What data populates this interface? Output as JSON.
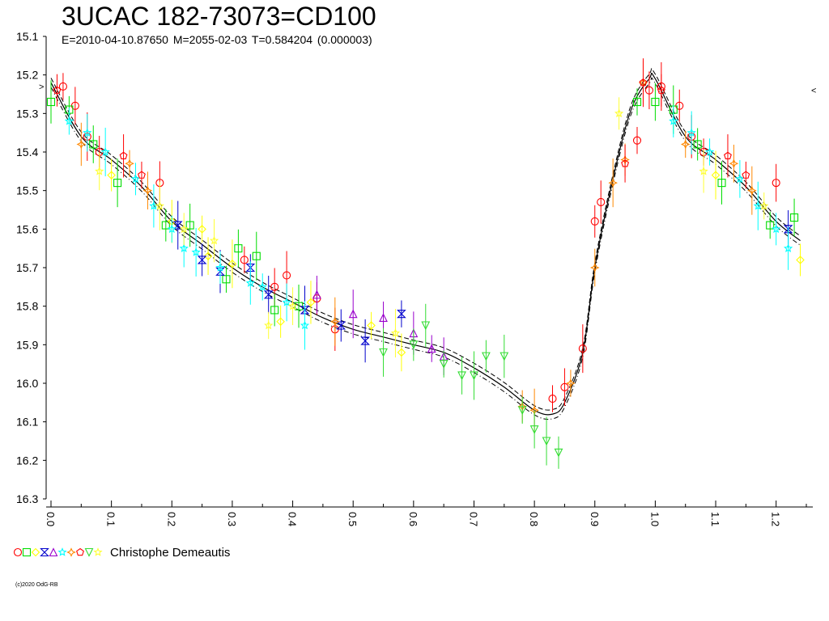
{
  "title": "3UCAC 182-73073=CD100",
  "subtitle": "E=2010-04-10.87650    M=2055-02-03    T=0.584204 (0.000003)",
  "copyright": "(c)2020 OdG-RB",
  "colors": {
    "red": "#ff0000",
    "green": "#00dd00",
    "yellow": "#ffff00",
    "blue": "#0000cc",
    "purple": "#9900cc",
    "cyan": "#00ffff",
    "orange": "#ff8800",
    "brightgreen": "#33dd33",
    "lightyellow": "#ffff33"
  },
  "chart_data": {
    "type": "scatter",
    "title": "3UCAC 182-73073=CD100",
    "xlabel": "",
    "ylabel": "",
    "xlim": [
      0.0,
      1.25
    ],
    "ylim": [
      16.3,
      15.1
    ],
    "y_inverted": true,
    "x_ticks": [
      "0.0",
      "0.1",
      "0.2",
      "0.3",
      "0.4",
      "0.5",
      "0.6",
      "0.7",
      "0.8",
      "0.9",
      "1.0",
      "1.1",
      "1.2"
    ],
    "y_ticks": [
      "15.1",
      "15.2",
      "15.3",
      "15.4",
      "15.5",
      "15.6",
      "15.7",
      "15.8",
      "15.9",
      "16.0",
      "16.1",
      "16.2",
      "16.3"
    ],
    "grid": false,
    "legend": {
      "position": "bottom-left",
      "label": "Christophe Demeautis",
      "markers": [
        {
          "shape": "circle",
          "color": "red"
        },
        {
          "shape": "square",
          "color": "green"
        },
        {
          "shape": "diamond",
          "color": "yellow"
        },
        {
          "shape": "bowtie",
          "color": "blue"
        },
        {
          "shape": "triangle-up",
          "color": "purple"
        },
        {
          "shape": "star",
          "color": "cyan"
        },
        {
          "shape": "cross",
          "color": "orange"
        },
        {
          "shape": "pentagon",
          "color": "red"
        },
        {
          "shape": "triangle-down",
          "color": "brightgreen"
        },
        {
          "shape": "star",
          "color": "lightyellow"
        }
      ]
    },
    "model_curve": {
      "description": "mean fit with +/- uncertainty envelope",
      "phase": [
        0.0,
        0.05,
        0.1,
        0.15,
        0.2,
        0.25,
        0.3,
        0.35,
        0.4,
        0.45,
        0.5,
        0.55,
        0.6,
        0.65,
        0.7,
        0.75,
        0.8,
        0.83,
        0.85,
        0.88,
        0.9,
        0.93,
        0.96,
        0.99,
        1.0,
        1.05,
        1.1,
        1.15,
        1.2,
        1.24
      ],
      "mag": [
        15.22,
        15.36,
        15.42,
        15.49,
        15.58,
        15.64,
        15.7,
        15.75,
        15.79,
        15.83,
        15.86,
        15.88,
        15.9,
        15.92,
        15.96,
        16.01,
        16.07,
        16.08,
        16.05,
        15.92,
        15.7,
        15.47,
        15.29,
        15.21,
        15.21,
        15.36,
        15.42,
        15.49,
        15.58,
        15.63
      ],
      "envelope": 0.012
    },
    "ticks_vertical_x_labels": true,
    "markers_tick_left": "15.23",
    "markers_tick_right": "15.24",
    "series": [
      {
        "name": "",
        "shape": "circle",
        "color": "red",
        "x": [
          0.02,
          0.04,
          0.06,
          0.08,
          0.18,
          0.32,
          0.37,
          0.39,
          0.44,
          0.47,
          0.83,
          0.85,
          0.88,
          0.9,
          0.91,
          0.97,
          0.99,
          1.01,
          1.04,
          1.06,
          1.08,
          1.2
        ],
        "y": [
          15.23,
          15.28,
          15.36,
          15.4,
          15.48,
          15.68,
          15.75,
          15.72,
          15.78,
          15.86,
          16.04,
          16.01,
          15.91,
          15.58,
          15.53,
          15.37,
          15.24,
          15.23,
          15.28,
          15.36,
          15.4,
          15.48
        ]
      },
      {
        "name": "",
        "shape": "square",
        "color": "green",
        "x": [
          0.0,
          0.03,
          0.07,
          0.11,
          0.19,
          0.23,
          0.29,
          0.31,
          0.34,
          0.37,
          0.41,
          0.97,
          1.0,
          1.03,
          1.07,
          1.11,
          1.19,
          1.23
        ],
        "y": [
          15.27,
          15.29,
          15.38,
          15.48,
          15.59,
          15.59,
          15.73,
          15.65,
          15.67,
          15.81,
          15.8,
          15.27,
          15.27,
          15.29,
          15.38,
          15.48,
          15.59,
          15.57
        ]
      },
      {
        "name": "",
        "shape": "diamond",
        "color": "yellow",
        "x": [
          0.1,
          0.2,
          0.25,
          0.26,
          0.3,
          0.38,
          0.43,
          0.53,
          0.58,
          1.1,
          1.24
        ],
        "y": [
          15.46,
          15.58,
          15.6,
          15.67,
          15.69,
          15.84,
          15.79,
          15.85,
          15.92,
          15.46,
          15.68
        ]
      },
      {
        "name": "",
        "shape": "bowtie",
        "color": "blue",
        "x": [
          0.21,
          0.25,
          0.28,
          0.33,
          0.36,
          0.42,
          0.48,
          0.52,
          0.58,
          1.22
        ],
        "y": [
          15.59,
          15.68,
          15.71,
          15.7,
          15.77,
          15.81,
          15.85,
          15.89,
          15.82,
          15.6
        ]
      },
      {
        "name": "",
        "shape": "triangle-up",
        "color": "purple",
        "x": [
          0.44,
          0.5,
          0.55,
          0.6,
          0.63,
          0.65
        ],
        "y": [
          15.77,
          15.82,
          15.83,
          15.87,
          15.91,
          15.93
        ]
      },
      {
        "name": "",
        "shape": "star",
        "color": "cyan",
        "x": [
          0.03,
          0.06,
          0.09,
          0.14,
          0.17,
          0.2,
          0.22,
          0.24,
          0.28,
          0.33,
          0.35,
          0.39,
          0.42,
          1.03,
          1.06,
          1.09,
          1.14,
          1.17,
          1.2,
          1.22
        ],
        "y": [
          15.32,
          15.35,
          15.4,
          15.47,
          15.54,
          15.6,
          15.65,
          15.66,
          15.7,
          15.74,
          15.75,
          15.79,
          15.85,
          15.32,
          15.35,
          15.4,
          15.47,
          15.54,
          15.6,
          15.65
        ]
      },
      {
        "name": "",
        "shape": "cross",
        "color": "orange",
        "x": [
          0.05,
          0.13,
          0.16,
          0.47,
          0.78,
          0.8,
          0.86,
          0.9,
          0.93,
          0.95,
          0.98,
          1.05,
          1.13,
          1.16
        ],
        "y": [
          15.38,
          15.43,
          15.5,
          15.84,
          16.06,
          16.07,
          16.0,
          15.7,
          15.48,
          15.42,
          15.22,
          15.38,
          15.43,
          15.5
        ]
      },
      {
        "name": "",
        "shape": "pentagon",
        "color": "red",
        "x": [
          0.01,
          0.12,
          0.15,
          0.95,
          0.98,
          1.01,
          1.12,
          1.15
        ],
        "y": [
          15.24,
          15.41,
          15.46,
          15.43,
          15.22,
          15.24,
          15.41,
          15.46
        ]
      },
      {
        "name": "",
        "shape": "triangle-down",
        "color": "brightgreen",
        "x": [
          0.55,
          0.6,
          0.62,
          0.65,
          0.68,
          0.7,
          0.72,
          0.75,
          0.78,
          0.8,
          0.82,
          0.84
        ],
        "y": [
          15.92,
          15.9,
          15.85,
          15.95,
          15.98,
          15.98,
          15.93,
          15.93,
          16.07,
          16.12,
          16.15,
          16.18
        ]
      },
      {
        "name": "",
        "shape": "star",
        "color": "lightyellow",
        "x": [
          0.08,
          0.18,
          0.22,
          0.27,
          0.36,
          0.4,
          0.57,
          0.94,
          1.08,
          1.18
        ],
        "y": [
          15.45,
          15.54,
          15.6,
          15.63,
          15.85,
          15.8,
          15.87,
          15.3,
          15.45,
          15.54
        ]
      }
    ]
  }
}
